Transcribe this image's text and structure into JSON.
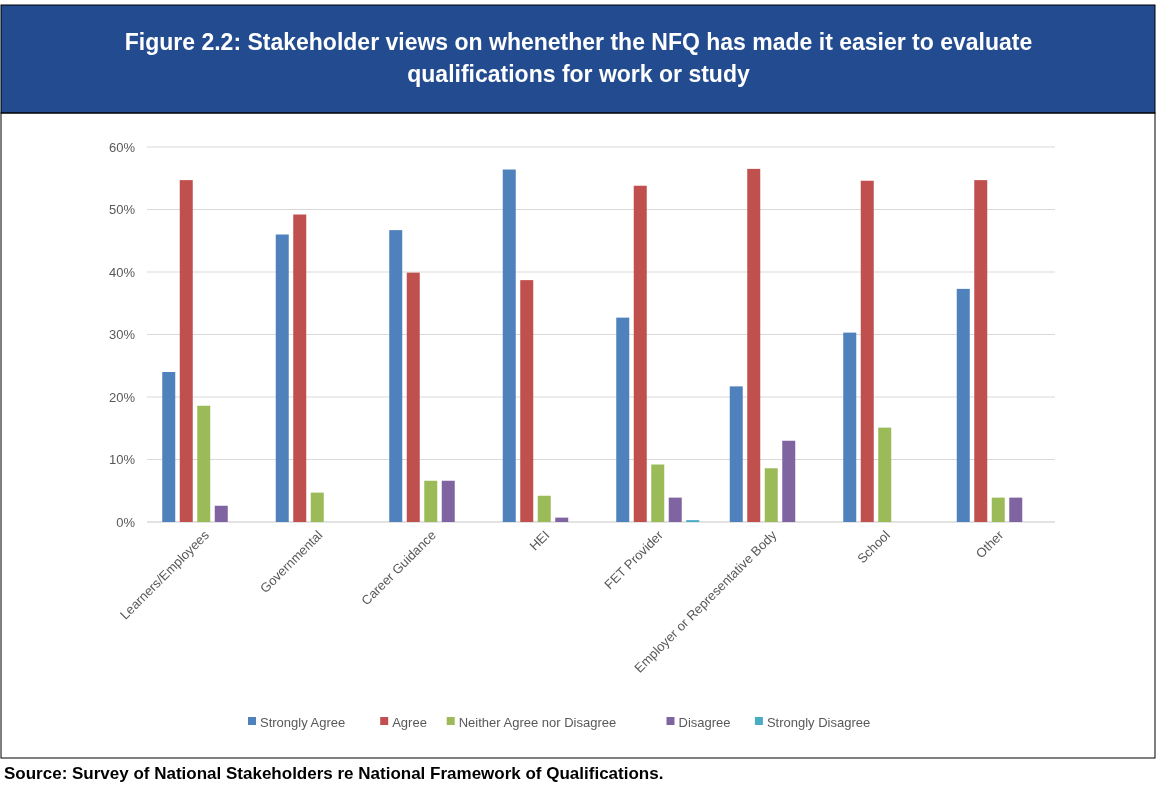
{
  "chart_data": {
    "type": "bar",
    "title": "Figure 2.2: Stakeholder views on whenether the NFQ has made it easier to evaluate qualifications for work or study",
    "categories": [
      "Learners/Employees",
      "Governmental",
      "Career Guidance",
      "HEI",
      "FET Provider",
      "Employer or Representative Body",
      "School",
      "Other"
    ],
    "series": [
      {
        "name": "Strongly Agree",
        "color": "#4f81bd",
        "values": [
          24.0,
          46.0,
          46.7,
          56.4,
          32.7,
          21.7,
          30.3,
          37.3
        ]
      },
      {
        "name": "Agree",
        "color": "#c0504d",
        "values": [
          54.7,
          49.2,
          39.9,
          38.7,
          53.8,
          56.5,
          54.6,
          54.7
        ]
      },
      {
        "name": "Neither Agree nor Disagree",
        "color": "#9bbb59",
        "values": [
          18.6,
          4.7,
          6.6,
          4.2,
          9.2,
          8.6,
          15.1,
          3.9
        ]
      },
      {
        "name": "Disagree",
        "color": "#8064a2",
        "values": [
          2.6,
          0,
          6.6,
          0.7,
          3.9,
          13.0,
          0,
          3.9
        ]
      },
      {
        "name": "Strongly Disagree",
        "color": "#4bacc6",
        "values": [
          0,
          0,
          0,
          0,
          0.3,
          0,
          0,
          0
        ]
      }
    ],
    "ylim": [
      0,
      60
    ],
    "yticks": [
      {
        "value": 0,
        "label": "0%"
      },
      {
        "value": 10,
        "label": "10%"
      },
      {
        "value": 20,
        "label": "20%"
      },
      {
        "value": 30,
        "label": "30%"
      },
      {
        "value": 40,
        "label": "40%"
      },
      {
        "value": 50,
        "label": "50%"
      },
      {
        "value": 60,
        "label": "60%"
      }
    ],
    "grid": "y",
    "legend": "bottom",
    "annotations": [
      "Source: Survey of National Stakeholders re National Framework of Qualifications."
    ]
  }
}
